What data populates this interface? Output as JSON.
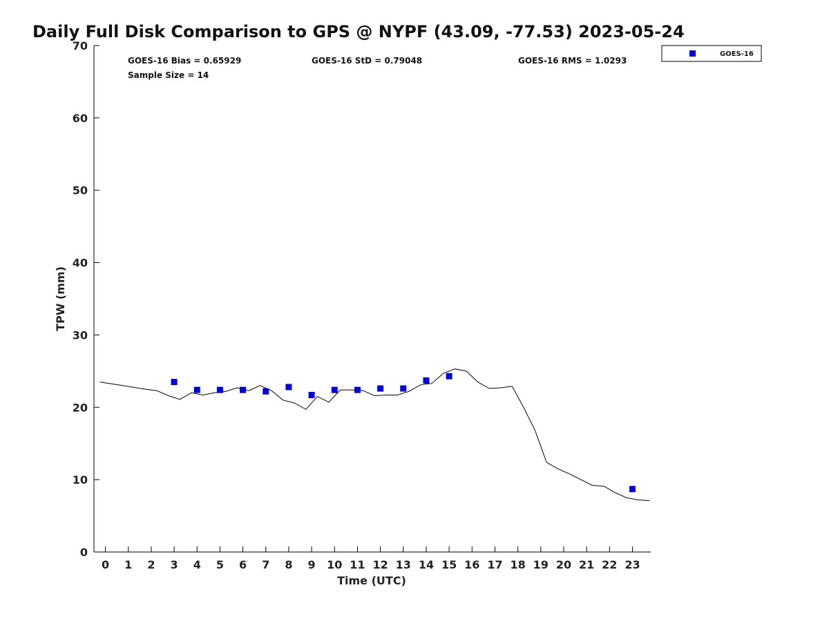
{
  "chart_data": {
    "type": "scatter",
    "title": "Daily Full Disk Comparison to GPS @ NYPF (43.09, -77.53) 2023-05-24",
    "xlabel": "Time (UTC)",
    "ylabel": "TPW (mm)",
    "xlim": [
      -0.5,
      23.8
    ],
    "ylim": [
      0,
      70
    ],
    "xticks": [
      0,
      1,
      2,
      3,
      4,
      5,
      6,
      7,
      8,
      9,
      10,
      11,
      12,
      13,
      14,
      15,
      16,
      17,
      18,
      19,
      20,
      21,
      22,
      23
    ],
    "yticks": [
      0,
      10,
      20,
      30,
      40,
      50,
      60,
      70
    ],
    "grid": false,
    "legend_position": "top-right",
    "stats": {
      "bias": "GOES-16 Bias = 0.65929",
      "std": "GOES-16 StD = 0.79048",
      "rms": "GOES-16 RMS = 1.0293",
      "sample_size": "Sample Size = 14"
    },
    "series": [
      {
        "name": "GOES-16",
        "kind": "scatter",
        "marker": "square",
        "color": "#0000dd",
        "x": [
          3,
          4,
          5,
          6,
          7,
          8,
          9,
          10,
          11,
          12,
          13,
          14,
          15,
          23
        ],
        "y": [
          23.5,
          22.4,
          22.4,
          22.4,
          22.2,
          22.8,
          21.7,
          22.4,
          22.4,
          22.6,
          22.6,
          23.7,
          24.3,
          8.7
        ]
      },
      {
        "kind": "line",
        "color": "#000000",
        "x": [
          -0.25,
          0.75,
          1.75,
          2.25,
          2.75,
          3.25,
          3.75,
          4.25,
          4.75,
          5.25,
          5.75,
          6.25,
          6.75,
          7.25,
          7.75,
          8.25,
          8.75,
          9.25,
          9.75,
          10.25,
          10.75,
          11.25,
          11.75,
          12.25,
          12.75,
          13.25,
          13.75,
          14.25,
          14.75,
          15.25,
          15.75,
          16.25,
          16.75,
          17.25,
          17.75,
          18.25,
          18.75,
          19.25,
          19.75,
          20.25,
          20.75,
          21.25,
          21.75,
          22.25,
          22.75,
          23.25,
          23.75
        ],
        "y": [
          23.5,
          23.0,
          22.5,
          22.3,
          21.6,
          21.1,
          22.0,
          21.7,
          22.0,
          22.2,
          22.7,
          22.3,
          23.0,
          22.3,
          21.0,
          20.6,
          19.7,
          21.5,
          20.7,
          22.4,
          22.4,
          22.3,
          21.6,
          21.7,
          21.7,
          22.2,
          23.1,
          23.3,
          24.7,
          25.3,
          25.0,
          23.5,
          22.6,
          22.7,
          22.9,
          20.0,
          16.8,
          12.4,
          11.5,
          10.8,
          10.0,
          9.2,
          9.1,
          8.2,
          7.5,
          7.2,
          7.1
        ]
      }
    ]
  }
}
